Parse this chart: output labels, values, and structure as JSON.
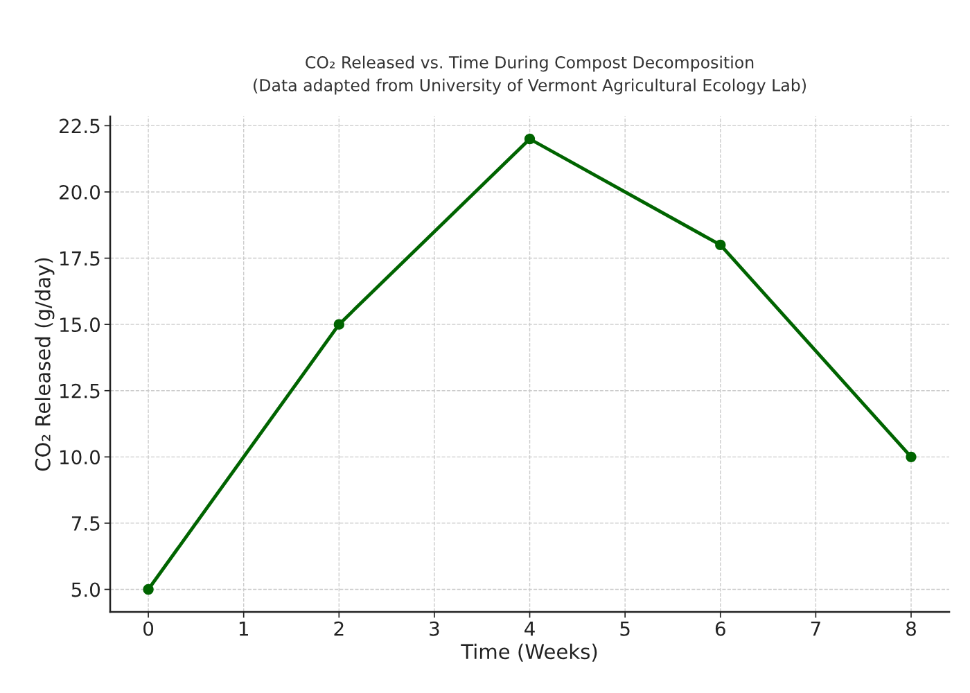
{
  "chart_data": {
    "type": "line",
    "title": "CO₂ Released vs. Time During Compost Decomposition",
    "subtitle": "(Data adapted from University of Vermont Agricultural Ecology Lab)",
    "xlabel": "Time (Weeks)",
    "ylabel": "CO₂ Released (g/day)",
    "x": [
      0,
      2,
      4,
      6,
      8
    ],
    "series": [
      {
        "color": "#006400",
        "values": [
          5,
          15,
          22,
          18,
          10
        ]
      }
    ],
    "xlim": [
      -0.4,
      8.4
    ],
    "xticks": [
      0,
      1,
      2,
      3,
      4,
      5,
      6,
      7,
      8
    ],
    "ylim": [
      4.15,
      22.85
    ],
    "yticks": [
      {
        "value": 5,
        "label": "5.0"
      },
      {
        "value": 7.5,
        "label": "7.5"
      },
      {
        "value": 10,
        "label": "10.0"
      },
      {
        "value": 12.5,
        "label": "12.5"
      },
      {
        "value": 15,
        "label": "15.0"
      },
      {
        "value": 17.5,
        "label": "17.5"
      },
      {
        "value": 20,
        "label": "20.0"
      },
      {
        "value": 22.5,
        "label": "22.5"
      }
    ],
    "grid": true,
    "marker": "circle",
    "line_style": "solid"
  }
}
